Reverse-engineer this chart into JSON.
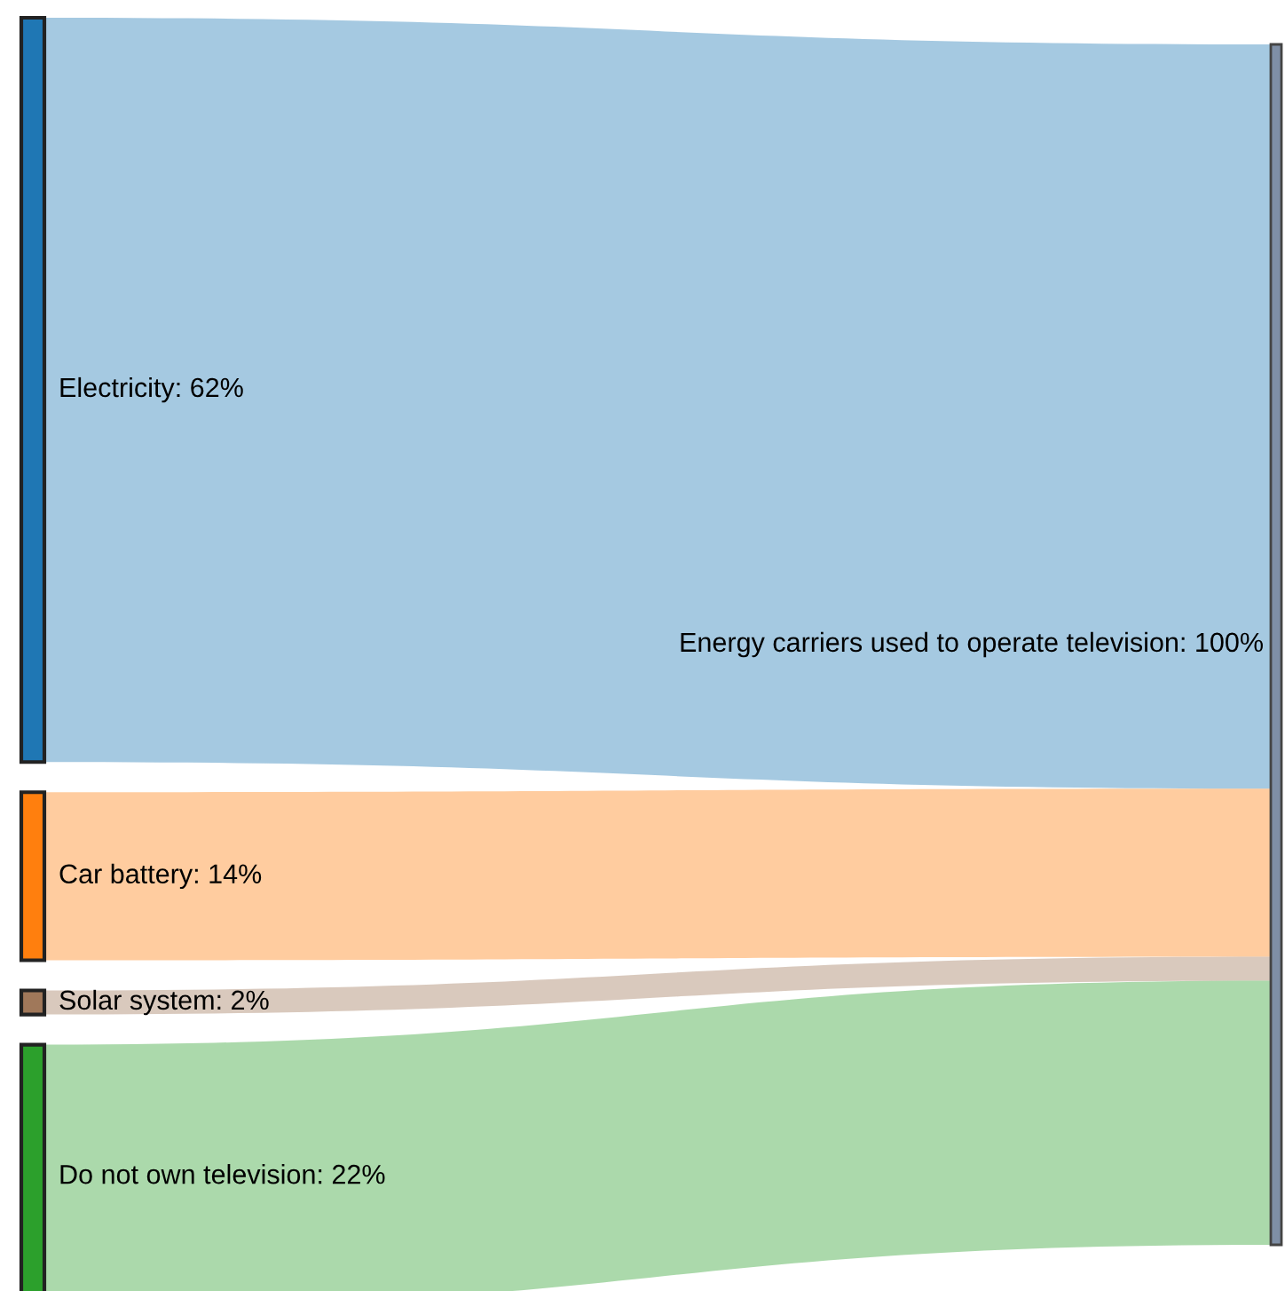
{
  "chart_data": {
    "type": "other",
    "categories": [
      "Electricity",
      "Car battery",
      "Solar system",
      "Do not own television"
    ],
    "values": [
      62,
      14,
      2,
      22
    ],
    "value_labels": [
      ": 62%",
      ": 14%",
      ": 2%",
      ": 22%"
    ],
    "colors": [
      "#1f77b4",
      "#ff7f0e",
      "#a0785a",
      "#2ca02c"
    ],
    "annotations": [
      "Energy carriers used to operate television: 100%"
    ]
  }
}
